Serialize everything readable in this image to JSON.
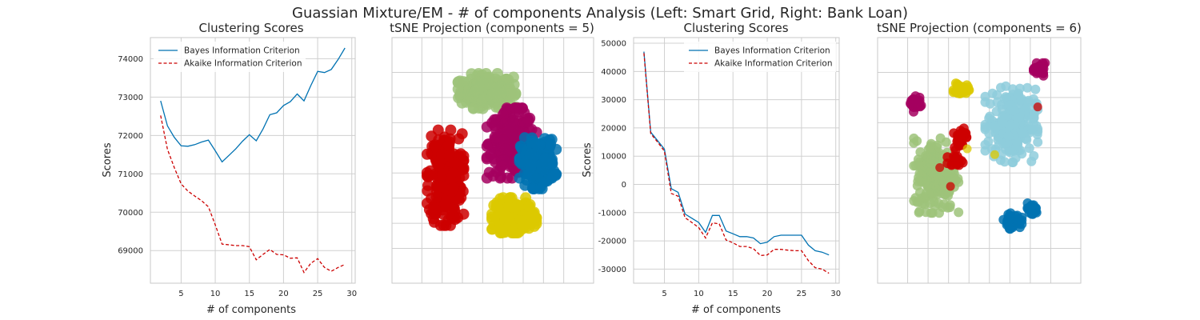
{
  "figure": {
    "suptitle": "Guassian Mixture/EM - # of components Analysis (Left: Smart Grid, Right: Bank Loan)"
  },
  "colors": {
    "bic": "#0072B2",
    "aic": "#CC0000",
    "cluster_blue": "#0072B2",
    "cluster_green": "#9DC37A",
    "cluster_red": "#CC0000",
    "cluster_magenta": "#A4005F",
    "cluster_yellow": "#DCC900",
    "cluster_cyan": "#8ECCDC",
    "grid": "#D0D0D0",
    "spine": "#C8C8C8"
  },
  "chart_data": [
    {
      "type": "line",
      "title": "Clustering Scores",
      "xlabel": "# of components",
      "ylabel": "Scores",
      "xlim": [
        0.5,
        30.5
      ],
      "ylim": [
        68150,
        74550
      ],
      "xticks": [
        5,
        10,
        15,
        20,
        25,
        30
      ],
      "yticks": [
        69000,
        70000,
        71000,
        72000,
        73000,
        74000
      ],
      "grid": true,
      "legend_position": "top-left",
      "x": [
        2,
        3,
        4,
        5,
        6,
        7,
        8,
        9,
        10,
        11,
        12,
        13,
        14,
        15,
        16,
        17,
        18,
        19,
        20,
        21,
        22,
        23,
        24,
        25,
        26,
        27,
        28,
        29
      ],
      "series": [
        {
          "name": "Bayes Information Criterion",
          "style": "solid",
          "color": "#0072B2",
          "values": [
            72900,
            72250,
            71950,
            71730,
            71720,
            71760,
            71830,
            71880,
            71600,
            71310,
            71480,
            71650,
            71850,
            72020,
            71860,
            72170,
            72540,
            72590,
            72780,
            72880,
            73080,
            72900,
            73300,
            73670,
            73640,
            73720,
            73980,
            74280
          ]
        },
        {
          "name": "Akaike Information Criterion",
          "style": "dashed",
          "color": "#CC0000",
          "values": [
            72520,
            71640,
            71160,
            70740,
            70550,
            70420,
            70300,
            70140,
            69670,
            69170,
            69150,
            69130,
            69130,
            69100,
            68760,
            68900,
            69030,
            68900,
            68890,
            68800,
            68810,
            68430,
            68670,
            68790,
            68560,
            68460,
            68560,
            68640
          ]
        }
      ]
    },
    {
      "type": "scatter",
      "title": "tSNE Projection (components = 5)",
      "axis_tick_labels": false,
      "grid": true,
      "clusters": [
        {
          "color": "#9DC37A",
          "center": [
            -5,
            48
          ],
          "spread": [
            22,
            11
          ],
          "count": 260
        },
        {
          "color": "#A4005F",
          "center": [
            16,
            12
          ],
          "spread": [
            19,
            22
          ],
          "count": 240
        },
        {
          "color": "#CC0000",
          "center": [
            -40,
            -12
          ],
          "spread": [
            14,
            30
          ],
          "count": 300
        },
        {
          "color": "#0072B2",
          "center": [
            38,
            -2
          ],
          "spread": [
            14,
            16
          ],
          "count": 230
        },
        {
          "color": "#DCC900",
          "center": [
            18,
            -38
          ],
          "spread": [
            17,
            11
          ],
          "count": 230
        }
      ]
    },
    {
      "type": "line",
      "title": "Clustering Scores",
      "xlabel": "# of components",
      "ylabel": "Scores",
      "xlim": [
        0.5,
        30.5
      ],
      "ylim": [
        -35000,
        52000
      ],
      "xticks": [
        5,
        10,
        15,
        20,
        25,
        30
      ],
      "yticks": [
        -30000,
        -20000,
        -10000,
        0,
        10000,
        20000,
        30000,
        40000,
        50000
      ],
      "grid": true,
      "legend_position": "top-right",
      "x": [
        2,
        3,
        4,
        5,
        6,
        7,
        8,
        9,
        10,
        11,
        12,
        13,
        14,
        15,
        16,
        17,
        18,
        19,
        20,
        21,
        22,
        23,
        24,
        25,
        26,
        27,
        28,
        29
      ],
      "series": [
        {
          "name": "Bayes Information Criterion",
          "style": "solid",
          "color": "#0072B2",
          "values": [
            47000,
            18500,
            15500,
            12500,
            -1500,
            -2800,
            -10500,
            -12000,
            -13500,
            -17000,
            -11000,
            -11000,
            -16500,
            -17500,
            -18500,
            -18500,
            -19000,
            -21000,
            -20500,
            -18500,
            -18000,
            -18000,
            -18000,
            -18000,
            -21500,
            -23500,
            -24000,
            -25000
          ]
        },
        {
          "name": "Akaike Information Criterion",
          "style": "dashed",
          "color": "#CC0000",
          "values": [
            46500,
            18000,
            15000,
            11800,
            -3200,
            -4200,
            -11800,
            -13500,
            -15300,
            -19000,
            -13600,
            -14000,
            -19700,
            -20700,
            -22000,
            -22000,
            -22800,
            -25200,
            -25000,
            -23000,
            -23000,
            -23300,
            -23500,
            -23500,
            -27000,
            -29500,
            -30000,
            -31500
          ]
        }
      ]
    },
    {
      "type": "scatter",
      "title": "tSNE Projection (components = 6)",
      "axis_tick_labels": false,
      "grid": true,
      "clusters": [
        {
          "color": "#A4005F",
          "center": [
            51,
            63
          ],
          "spread": [
            5,
            4
          ],
          "count": 40
        },
        {
          "color": "#A4005F",
          "center": [
            -54,
            39
          ],
          "spread": [
            5,
            5
          ],
          "count": 40
        },
        {
          "color": "#DCC900",
          "center": [
            -15,
            49
          ],
          "spread": [
            6,
            4
          ],
          "count": 40
        },
        {
          "color": "#8ECCDC",
          "center": [
            27,
            25
          ],
          "spread": [
            20,
            24
          ],
          "count": 240
        },
        {
          "color": "#9DC37A",
          "center": [
            -36,
            -10
          ],
          "spread": [
            17,
            24
          ],
          "count": 230
        },
        {
          "color": "#0072B2",
          "center": [
            28,
            -42
          ],
          "spread": [
            7,
            5
          ],
          "count": 50
        },
        {
          "color": "#0072B2",
          "center": [
            44,
            -34
          ],
          "spread": [
            5,
            4
          ],
          "count": 40
        },
        {
          "color": "#CC0000",
          "center": [
            -16,
            16
          ],
          "spread": [
            5,
            8
          ],
          "count": 30
        },
        {
          "color": "#CC0000",
          "center": [
            -20,
            0
          ],
          "spread": [
            6,
            3
          ],
          "count": 20
        }
      ],
      "outliers": [
        {
          "color": "#CC0000",
          "points": [
            [
              49,
              37
            ],
            [
              -33,
              -5
            ],
            [
              -24,
              -18
            ]
          ]
        },
        {
          "color": "#DCC900",
          "points": [
            [
              -10,
              8
            ],
            [
              13,
              4
            ]
          ]
        }
      ]
    }
  ]
}
